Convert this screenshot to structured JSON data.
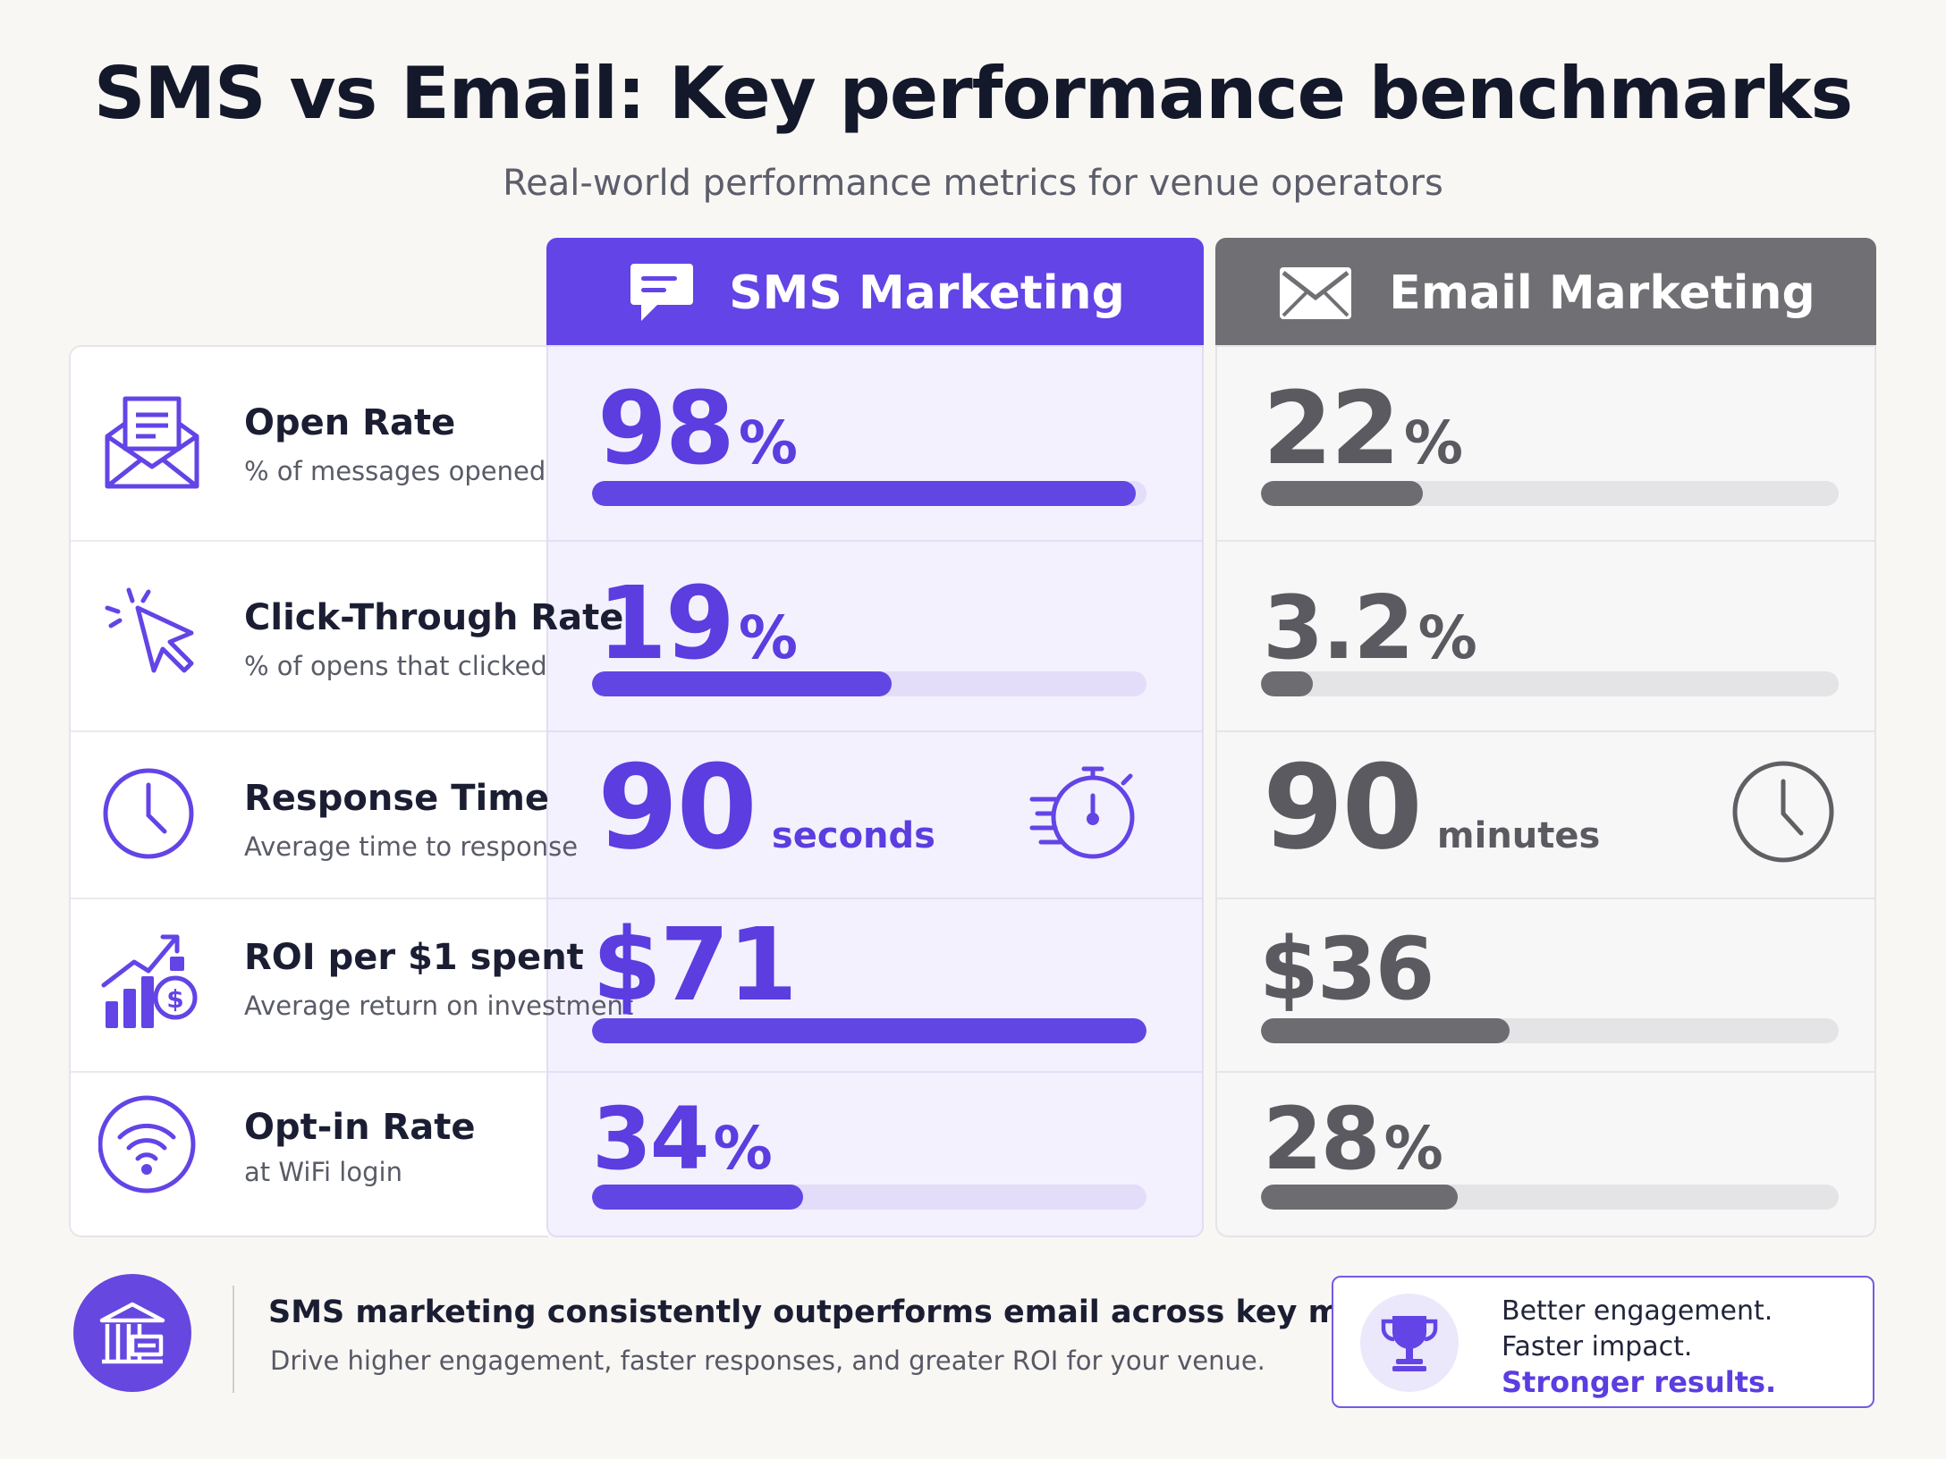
{
  "header": {
    "title": "SMS vs Email: Key performance benchmarks",
    "subtitle": "Real-world performance metrics for venue operators"
  },
  "columns": {
    "sms": {
      "label": "SMS Marketing",
      "icon": "chat-bubble-icon",
      "color": "#6344e6"
    },
    "email": {
      "label": "Email Marketing",
      "icon": "envelope-icon",
      "color": "#6f6f74"
    }
  },
  "metrics": [
    {
      "name": "Open Rate",
      "desc": "% of messages opened",
      "icon": "open-envelope-icon"
    },
    {
      "name": "Click-Through Rate",
      "desc": "% of opens that clicked",
      "icon": "cursor-click-icon"
    },
    {
      "name": "Response Time",
      "desc": "Average time to response",
      "icon": "clock-icon"
    },
    {
      "name": "ROI per $1 spent",
      "desc": "Average return on investment",
      "icon": "growth-chart-icon"
    },
    {
      "name": "Opt-in Rate",
      "desc": "at WiFi login",
      "icon": "wifi-icon"
    }
  ],
  "values": {
    "sms": [
      {
        "num": "98",
        "unit": "%"
      },
      {
        "num": "19",
        "unit": "%"
      },
      {
        "num": "90",
        "unit": "seconds"
      },
      {
        "num": "$71",
        "unit": ""
      },
      {
        "num": "34",
        "unit": "%"
      }
    ],
    "email": [
      {
        "num": "22",
        "unit": "%"
      },
      {
        "num": "3.2",
        "unit": "%"
      },
      {
        "num": "90",
        "unit": "minutes"
      },
      {
        "num": "$36",
        "unit": ""
      },
      {
        "num": "28",
        "unit": "%"
      }
    ]
  },
  "chart_data": {
    "type": "bar",
    "categories": [
      "Open Rate",
      "Click-Through Rate",
      "ROI per $1 spent",
      "Opt-in Rate"
    ],
    "series": [
      {
        "name": "SMS Marketing",
        "values": [
          98,
          19,
          71,
          34
        ],
        "bar_fill": [
          0.98,
          0.54,
          1.0,
          0.38
        ]
      },
      {
        "name": "Email Marketing",
        "values": [
          22,
          3.2,
          36,
          28
        ],
        "bar_fill": [
          0.28,
          0.09,
          0.43,
          0.34
        ]
      }
    ],
    "response_time": {
      "sms": "90 seconds",
      "email": "90 minutes"
    }
  },
  "footer": {
    "title": "SMS marketing consistently outperforms email across key metrics",
    "text": "Drive higher engagement, faster responses, and greater ROI for your venue.",
    "badge_icon": "venue-building-icon",
    "result_icon": "trophy-icon",
    "results": [
      "Better engagement.",
      "Faster impact.",
      "Stronger results."
    ]
  }
}
